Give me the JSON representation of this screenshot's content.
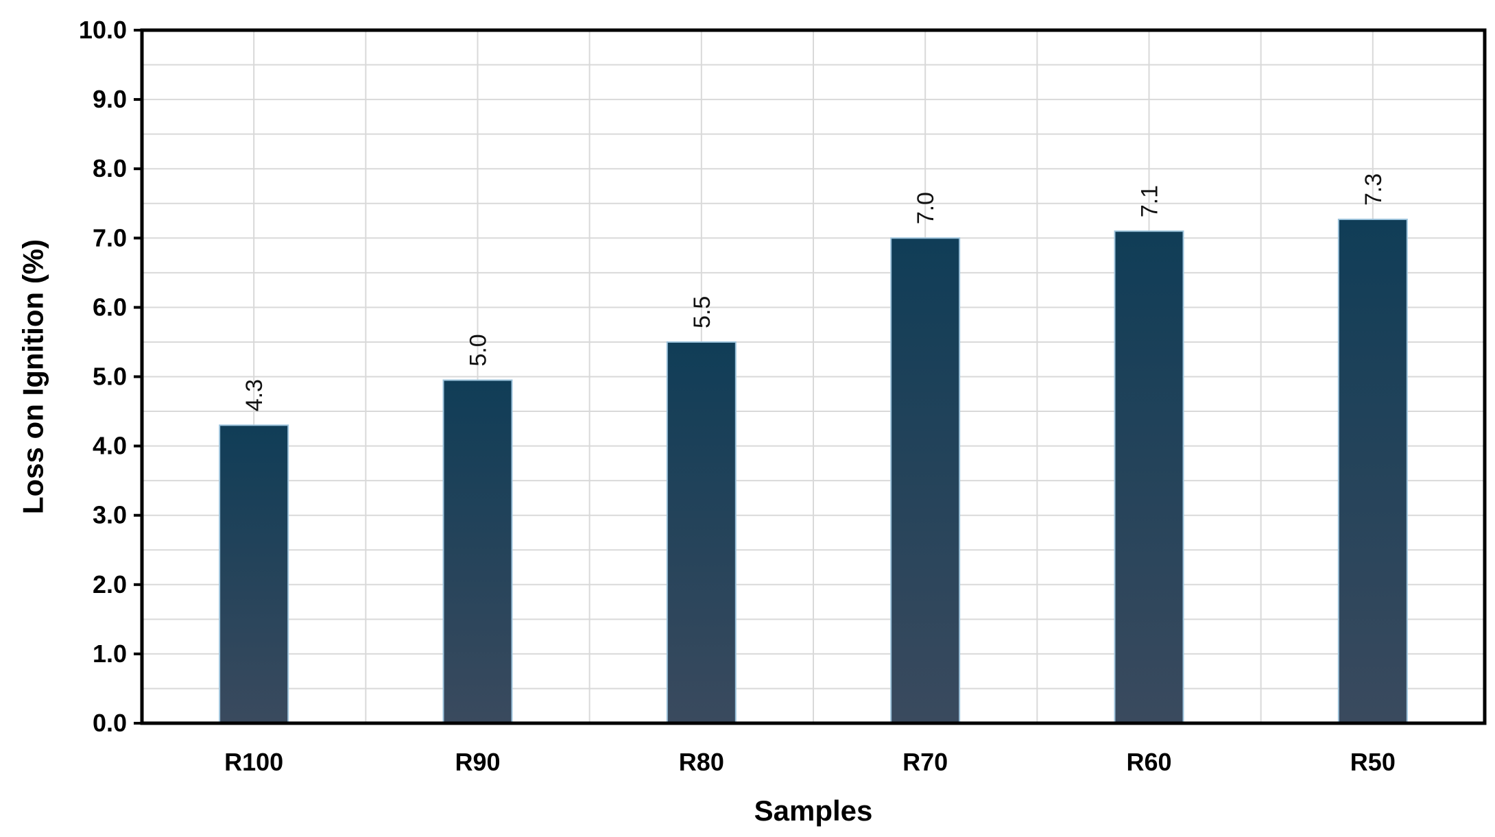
{
  "chart_data": {
    "type": "bar",
    "categories": [
      "R100",
      "R90",
      "R80",
      "R70",
      "R60",
      "R50"
    ],
    "values": [
      4.3,
      4.95,
      5.5,
      7.0,
      7.1,
      7.27
    ],
    "data_labels": [
      "4.3",
      "5.0",
      "5.5",
      "7.0",
      "7.1",
      "7.3"
    ],
    "xlabel": "Samples",
    "ylabel": "Loss on Ignition (%)",
    "ylim": [
      0,
      10
    ],
    "yticks": [
      "0.0",
      "1.0",
      "2.0",
      "3.0",
      "4.0",
      "5.0",
      "6.0",
      "7.0",
      "8.0",
      "9.0",
      "10.0"
    ],
    "grid": true,
    "bar_color_top": "#103d57",
    "bar_color_bottom": "#3a4a5e"
  }
}
